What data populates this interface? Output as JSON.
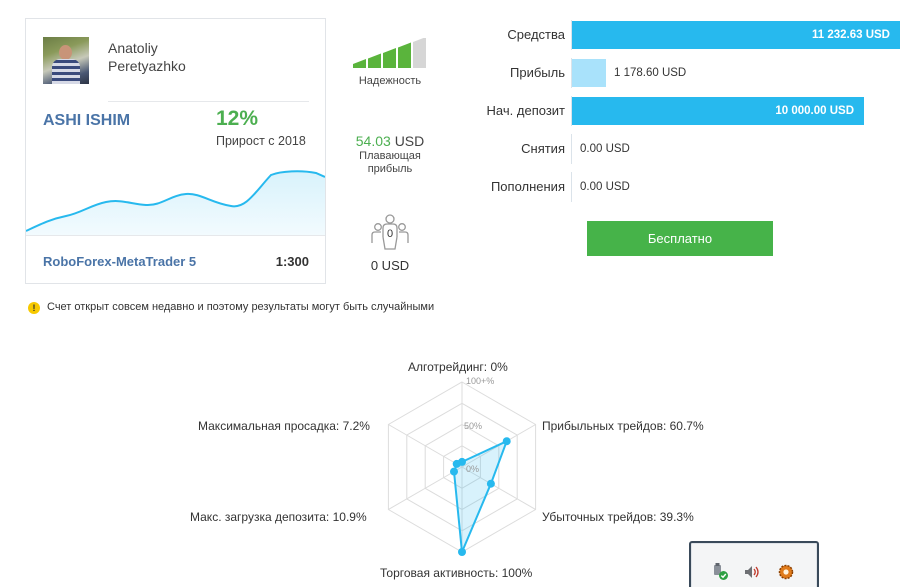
{
  "profile": {
    "first_name": "Anatoliy",
    "last_name": "Peretyazhko",
    "account_name": "ASHI ISHIM",
    "growth_value": "12%",
    "growth_label": "Прирост с 2018",
    "broker": "RoboForex-MetaTrader 5",
    "leverage": "1:300"
  },
  "stats": {
    "reliability_label": "Надежность",
    "reliability_level": 4,
    "reliability_max": 5,
    "floating_amount": "54.03",
    "floating_currency": "USD",
    "floating_label": "Плавающая прибыль",
    "subscribers_count": "0",
    "subscribers_funds": "0 USD"
  },
  "finance": [
    {
      "label": "Средства",
      "value": "11 232.63 USD",
      "amount": 11232.63
    },
    {
      "label": "Прибыль",
      "value": "1 178.60 USD",
      "amount": 1178.6
    },
    {
      "label": "Нач. депозит",
      "value": "10 000.00 USD",
      "amount": 10000.0
    },
    {
      "label": "Снятия",
      "value": "0.00 USD",
      "amount": 0
    },
    {
      "label": "Пополнения",
      "value": "0.00 USD",
      "amount": 0
    }
  ],
  "free_button_label": "Бесплатно",
  "warning_text": "Счет открыт совсем недавно и поэтому результаты могут быть случайными",
  "radar": {
    "ticks": [
      "100+%",
      "50%",
      "0%"
    ],
    "axes": [
      {
        "label": "Алготрейдинг: 0%",
        "value": 0
      },
      {
        "label": "Прибыльных трейдов: 60.7%",
        "value": 60.7
      },
      {
        "label": "Убыточных трейдов: 39.3%",
        "value": 39.3
      },
      {
        "label": "Торговая активность: 100%",
        "value": 100
      },
      {
        "label": "Макс. загрузка депозита: 10.9%",
        "value": 10.9
      },
      {
        "label": "Максимальная просадка: 7.2%",
        "value": 7.2
      }
    ]
  },
  "tray": {
    "icons": [
      "usb-safely-remove-icon",
      "volume-icon",
      "gear-app-icon"
    ]
  },
  "colors": {
    "accent_blue": "#27b9ee",
    "light_blue": "#a9e2fb",
    "green": "#46b349",
    "link_blue": "#4a74a7",
    "growth_green": "#4caf50"
  }
}
